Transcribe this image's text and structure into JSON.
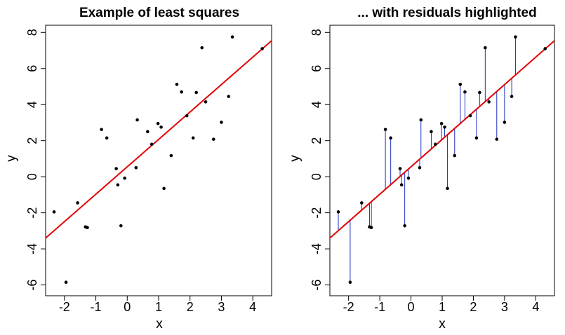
{
  "chart_data": [
    {
      "type": "scatter",
      "title": "Example of least squares",
      "xlabel": "x",
      "ylabel": "y",
      "xlim": [
        -2.6,
        4.6
      ],
      "ylim": [
        -6.6,
        8.4
      ],
      "xticks": [
        -2,
        -1,
        0,
        1,
        2,
        3,
        4
      ],
      "yticks": [
        -6,
        -4,
        -2,
        0,
        2,
        4,
        6,
        8
      ],
      "fit_line": {
        "intercept": 0.55,
        "slope": 1.52,
        "color": "#e00000"
      },
      "show_residuals": false,
      "point_color": "#000000",
      "points": [
        [
          -2.33,
          -1.95
        ],
        [
          -1.95,
          -5.85
        ],
        [
          -1.58,
          -1.45
        ],
        [
          -1.33,
          -2.78
        ],
        [
          -1.27,
          -2.82
        ],
        [
          -0.82,
          2.62
        ],
        [
          -0.65,
          2.15
        ],
        [
          -0.35,
          0.45
        ],
        [
          -0.3,
          -0.45
        ],
        [
          -0.2,
          -2.72
        ],
        [
          -0.08,
          -0.08
        ],
        [
          0.28,
          0.5
        ],
        [
          0.32,
          3.15
        ],
        [
          0.65,
          2.5
        ],
        [
          0.78,
          1.8
        ],
        [
          0.98,
          2.95
        ],
        [
          1.08,
          2.75
        ],
        [
          1.17,
          -0.65
        ],
        [
          1.4,
          1.17
        ],
        [
          1.58,
          5.12
        ],
        [
          1.73,
          4.7
        ],
        [
          1.9,
          3.38
        ],
        [
          2.1,
          2.15
        ],
        [
          2.2,
          4.67
        ],
        [
          2.38,
          7.15
        ],
        [
          2.5,
          4.15
        ],
        [
          2.75,
          2.08
        ],
        [
          3.0,
          3.02
        ],
        [
          3.23,
          4.45
        ],
        [
          3.35,
          7.75
        ],
        [
          4.3,
          7.1
        ]
      ]
    },
    {
      "type": "scatter",
      "title": "... with residuals highlighted",
      "xlabel": "x",
      "ylabel": "y",
      "xlim": [
        -2.6,
        4.6
      ],
      "ylim": [
        -6.6,
        8.4
      ],
      "xticks": [
        -2,
        -1,
        0,
        1,
        2,
        3,
        4
      ],
      "yticks": [
        -6,
        -4,
        -2,
        0,
        2,
        4,
        6,
        8
      ],
      "fit_line": {
        "intercept": 0.55,
        "slope": 1.52,
        "color": "#e00000"
      },
      "show_residuals": true,
      "residual_color": "#1c2ec0",
      "point_color": "#000000",
      "points": [
        [
          -2.33,
          -1.95
        ],
        [
          -1.95,
          -5.85
        ],
        [
          -1.58,
          -1.45
        ],
        [
          -1.33,
          -2.78
        ],
        [
          -1.27,
          -2.82
        ],
        [
          -0.82,
          2.62
        ],
        [
          -0.65,
          2.15
        ],
        [
          -0.35,
          0.45
        ],
        [
          -0.3,
          -0.45
        ],
        [
          -0.2,
          -2.72
        ],
        [
          -0.08,
          -0.08
        ],
        [
          0.28,
          0.5
        ],
        [
          0.32,
          3.15
        ],
        [
          0.65,
          2.5
        ],
        [
          0.78,
          1.8
        ],
        [
          0.98,
          2.95
        ],
        [
          1.08,
          2.75
        ],
        [
          1.17,
          -0.65
        ],
        [
          1.4,
          1.17
        ],
        [
          1.58,
          5.12
        ],
        [
          1.73,
          4.7
        ],
        [
          1.9,
          3.38
        ],
        [
          2.1,
          2.15
        ],
        [
          2.2,
          4.67
        ],
        [
          2.38,
          7.15
        ],
        [
          2.5,
          4.15
        ],
        [
          2.75,
          2.08
        ],
        [
          3.0,
          3.02
        ],
        [
          3.23,
          4.45
        ],
        [
          3.35,
          7.75
        ],
        [
          4.3,
          7.1
        ]
      ]
    }
  ]
}
